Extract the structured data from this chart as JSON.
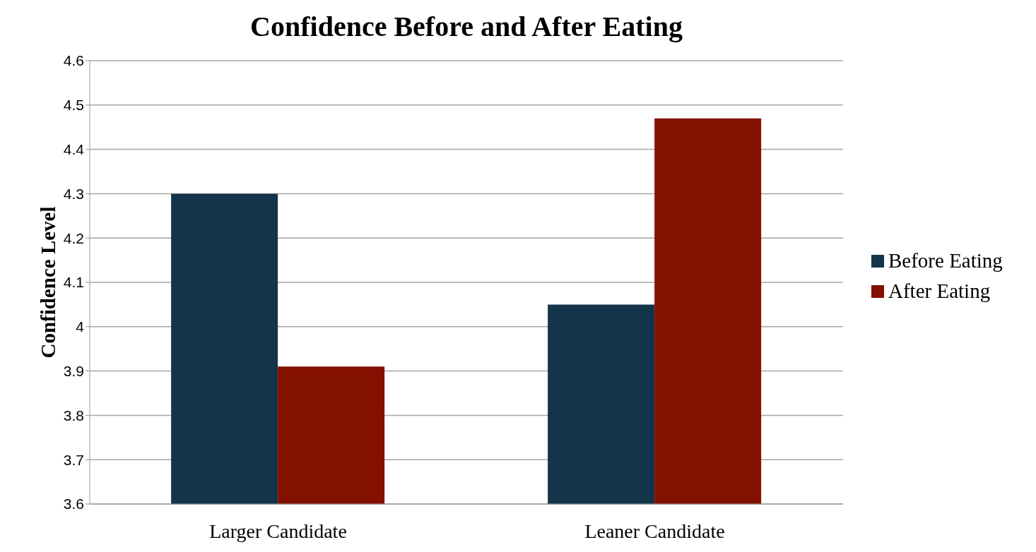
{
  "chart_data": {
    "type": "bar",
    "title": "Confidence Before and After Eating",
    "ylabel": "Confidence Level",
    "categories": [
      "Larger Candidate",
      "Leaner Candidate"
    ],
    "series": [
      {
        "name": "Before Eating",
        "color": "#14344a",
        "values": [
          4.3,
          4.05
        ]
      },
      {
        "name": "After Eating",
        "color": "#841000",
        "values": [
          3.91,
          4.47
        ]
      }
    ],
    "ylim": [
      3.6,
      4.6
    ],
    "yticks": [
      3.6,
      3.7,
      3.8,
      3.9,
      4,
      4.1,
      4.2,
      4.3,
      4.4,
      4.5,
      4.6
    ],
    "grid": "y",
    "legend": "right"
  }
}
